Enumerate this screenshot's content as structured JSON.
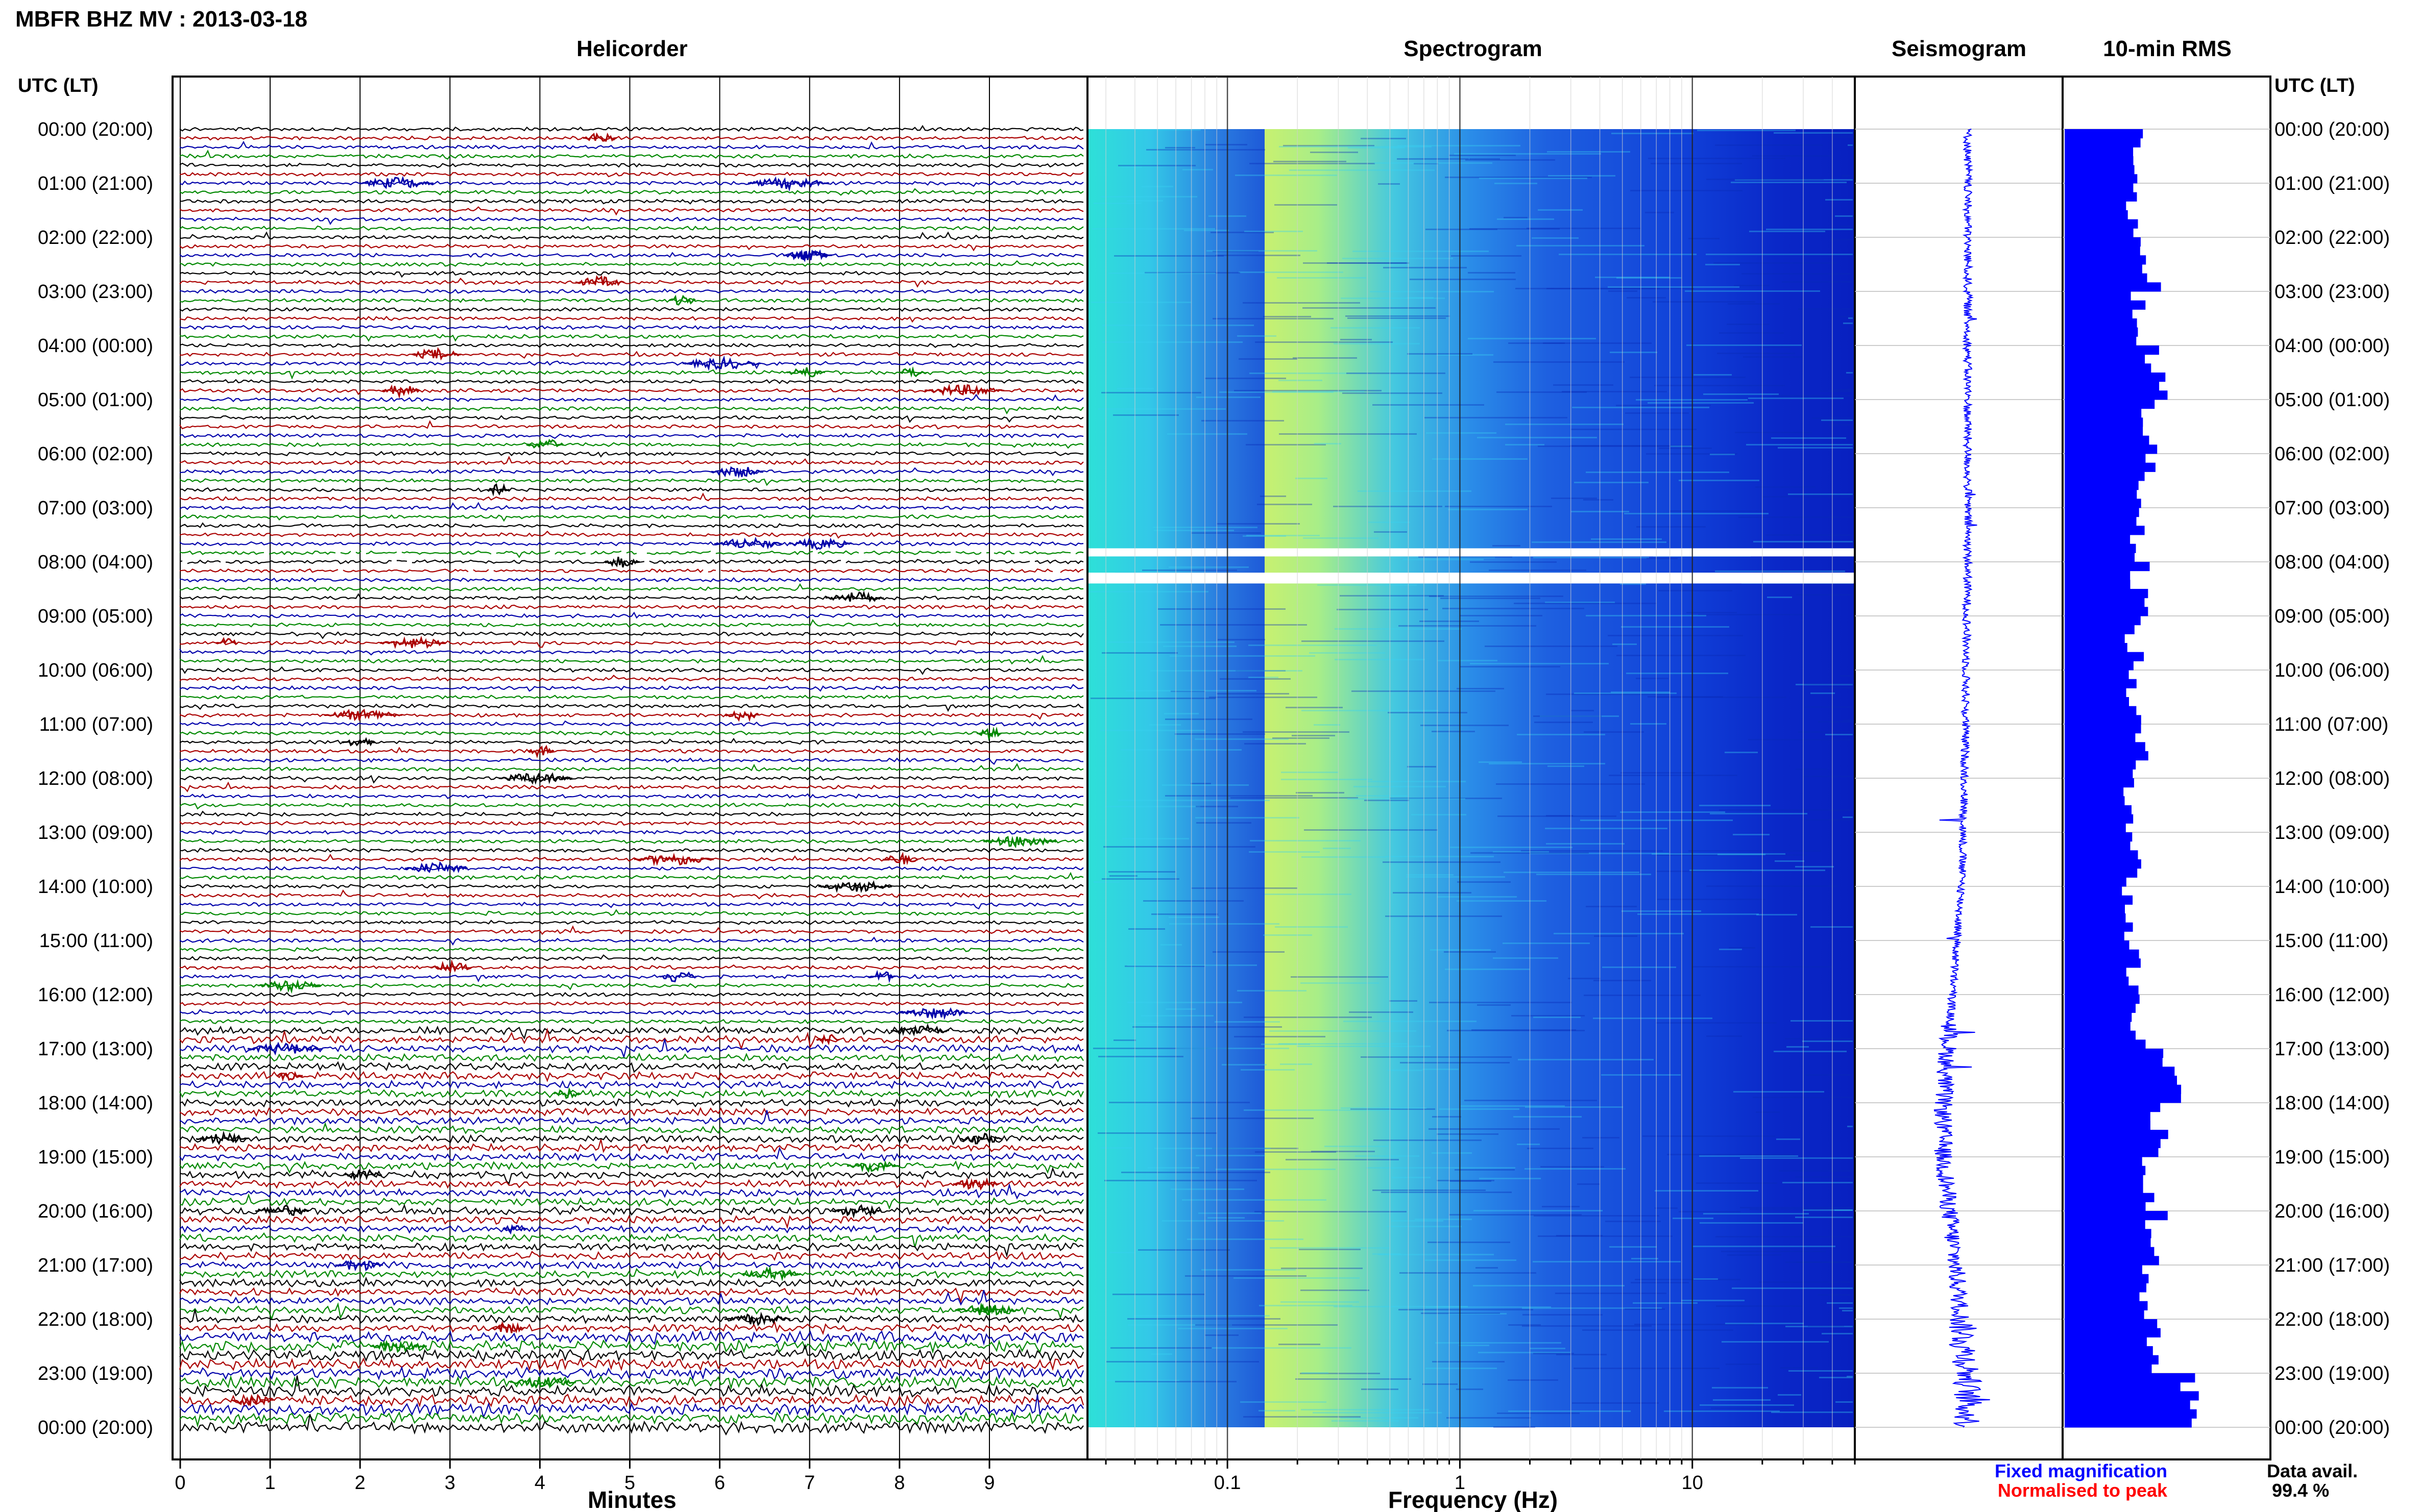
{
  "header": {
    "station_title": "MBFR BHZ MV : 2013-03-18",
    "left_time_label": "UTC (LT)",
    "right_time_label": "UTC (LT)"
  },
  "panels": {
    "helicorder_title": "Helicorder",
    "spectrogram_title": "Spectrogram",
    "seismogram_title": "Seismogram",
    "rms_title": "10-min RMS"
  },
  "time_labels": [
    "00:00 (20:00)",
    "01:00 (21:00)",
    "02:00 (22:00)",
    "03:00 (23:00)",
    "04:00 (00:00)",
    "05:00 (01:00)",
    "06:00 (02:00)",
    "07:00 (03:00)",
    "08:00 (04:00)",
    "09:00 (05:00)",
    "10:00 (06:00)",
    "11:00 (07:00)",
    "12:00 (08:00)",
    "13:00 (09:00)",
    "14:00 (10:00)",
    "15:00 (11:00)",
    "16:00 (12:00)",
    "17:00 (13:00)",
    "18:00 (14:00)",
    "19:00 (15:00)",
    "20:00 (16:00)",
    "21:00 (17:00)",
    "22:00 (18:00)",
    "23:00 (19:00)",
    "00:00 (20:00)"
  ],
  "legend": {
    "fixed": "Fixed magnification",
    "normalised": "Normalised to peak",
    "data_avail_label": "Data avail.",
    "data_avail_value": "99.4 %"
  },
  "colors": {
    "fixed": "#0000ff",
    "normalised": "#ff0000",
    "heli_traces": [
      "#000000",
      "#aa0000",
      "#0000aa",
      "#008800"
    ],
    "seismogram": "#0000ff",
    "rms": "#0000ff",
    "grid": "#bbbbbb"
  },
  "chart_data": [
    {
      "type": "line",
      "name": "helicorder",
      "xlabel": "Minutes",
      "x_ticks": [
        "0",
        "1",
        "2",
        "3",
        "4",
        "5",
        "6",
        "7",
        "8",
        "9"
      ],
      "xlim": [
        0,
        10
      ],
      "ylim": [
        0,
        24
      ],
      "traces_per_hour": 6,
      "gap_hours": [
        7.75,
        8.33
      ]
    },
    {
      "type": "heatmap",
      "name": "spectrogram",
      "xlabel": "Frequency (Hz)",
      "x_scale": "log",
      "x_ticks": [
        "0.1",
        "1",
        "10"
      ],
      "xlim": [
        0.025,
        50
      ],
      "ylim": [
        0,
        24
      ],
      "gap_hours": [
        [
          7.75,
          7.9
        ],
        [
          8.2,
          8.4
        ]
      ]
    },
    {
      "type": "line",
      "name": "seismogram",
      "ylim": [
        0,
        24
      ],
      "drift_hours": [
        0,
        4,
        8,
        12,
        14,
        16,
        18,
        19,
        20,
        21,
        22,
        23,
        24
      ],
      "drift_offset": [
        0.05,
        0.05,
        0.05,
        0.0,
        -0.05,
        -0.2,
        -0.35,
        -0.35,
        -0.25,
        -0.15,
        -0.05,
        0.05,
        0.05
      ]
    },
    {
      "type": "bar",
      "name": "10-min RMS",
      "ylim": [
        0,
        24
      ],
      "bins_per_hour": 6,
      "hourly_rms": [
        0.5,
        0.45,
        0.55,
        0.5,
        0.6,
        0.55,
        0.55,
        0.48,
        0.5,
        0.45,
        0.45,
        0.48,
        0.45,
        0.45,
        0.42,
        0.45,
        0.48,
        0.7,
        0.65,
        0.55,
        0.6,
        0.55,
        0.55,
        0.8
      ]
    }
  ]
}
